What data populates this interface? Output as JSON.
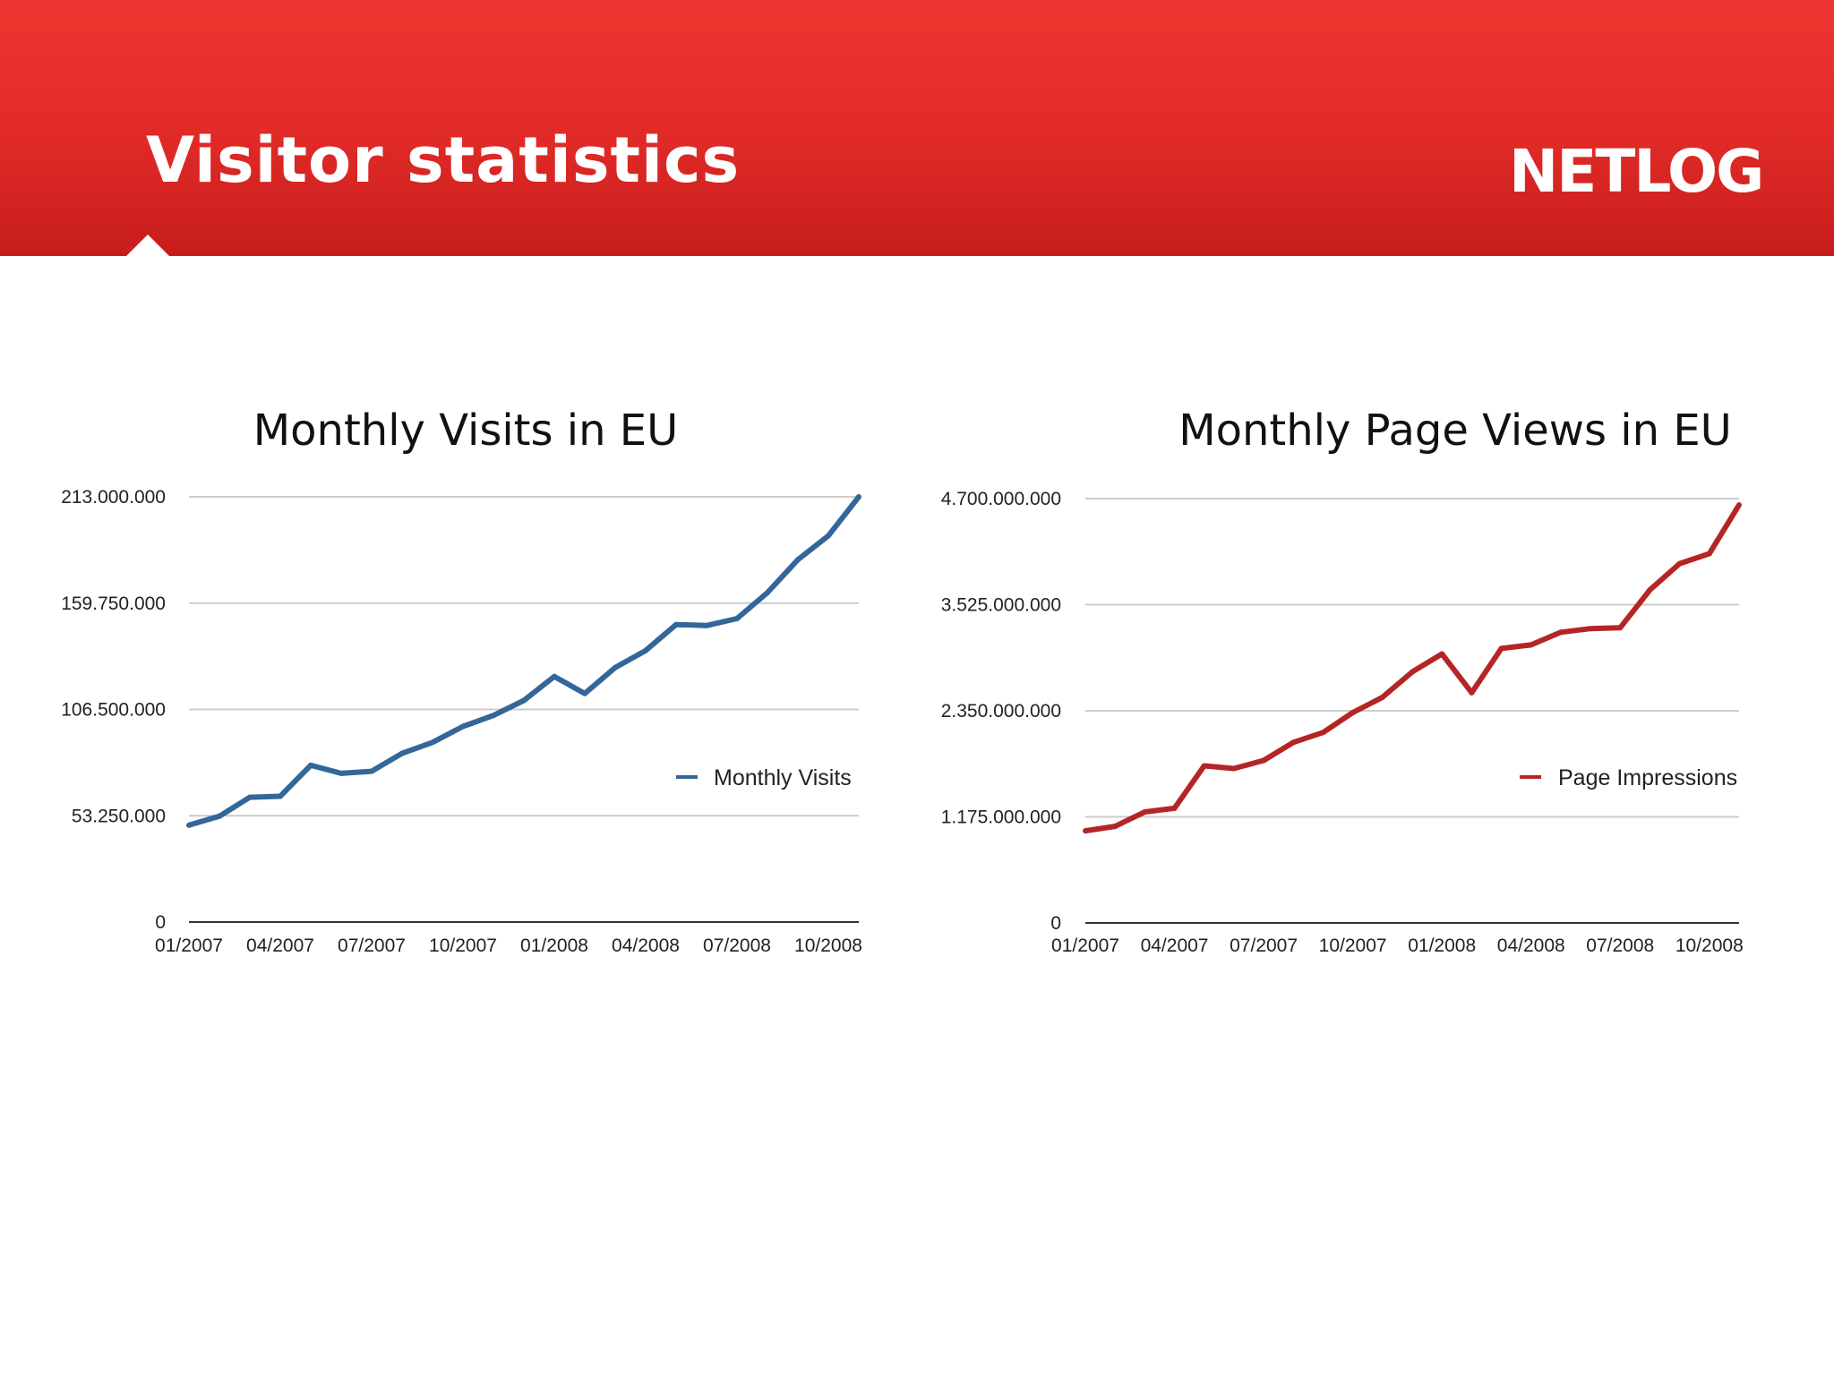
{
  "header": {
    "title": "Visitor statistics",
    "logo_text": "NETLOG",
    "bg_color": "#e02a27"
  },
  "chart_data": [
    {
      "type": "line",
      "title": "Monthly Visits in EU",
      "xlabel": "",
      "ylabel": "",
      "ylim": [
        0,
        213000000
      ],
      "y_ticks": [
        "0",
        "53.250.000",
        "106.500.000",
        "159.750.000",
        "213.000.000"
      ],
      "x_ticks": [
        "01/2007",
        "04/2007",
        "07/2007",
        "10/2007",
        "01/2008",
        "04/2008",
        "07/2008",
        "10/2008"
      ],
      "grid": true,
      "legend_position": "right",
      "color": "#336699",
      "series": [
        {
          "name": "Monthly Visits",
          "x": [
            "01/2007",
            "02/2007",
            "03/2007",
            "04/2007",
            "05/2007",
            "06/2007",
            "07/2007",
            "08/2007",
            "09/2007",
            "10/2007",
            "11/2007",
            "12/2007",
            "01/2008",
            "02/2008",
            "03/2008",
            "04/2008",
            "05/2008",
            "06/2008",
            "07/2008",
            "08/2008",
            "09/2008",
            "10/2008",
            "11/2008"
          ],
          "values": [
            48500000,
            53000000,
            62500000,
            63000000,
            78500000,
            74500000,
            75500000,
            84500000,
            90000000,
            98000000,
            103500000,
            111000000,
            123000000,
            114500000,
            127500000,
            136000000,
            149000000,
            148500000,
            152000000,
            165000000,
            181500000,
            193500000,
            213000000
          ]
        }
      ]
    },
    {
      "type": "line",
      "title": "Monthly Page Views in EU",
      "xlabel": "",
      "ylabel": "",
      "ylim": [
        0,
        4700000000
      ],
      "y_ticks": [
        "0",
        "1.175.000.000",
        "2.350.000.000",
        "3.525.000.000",
        "4.700.000.000"
      ],
      "x_ticks": [
        "01/2007",
        "04/2007",
        "07/2007",
        "10/2007",
        "01/2008",
        "04/2008",
        "07/2008",
        "10/2008"
      ],
      "grid": true,
      "legend_position": "right",
      "color": "#b52525",
      "series": [
        {
          "name": "Page Impressions",
          "x": [
            "01/2007",
            "02/2007",
            "03/2007",
            "04/2007",
            "05/2007",
            "06/2007",
            "07/2007",
            "08/2007",
            "09/2007",
            "10/2007",
            "11/2007",
            "12/2007",
            "01/2008",
            "02/2008",
            "03/2008",
            "04/2008",
            "05/2008",
            "06/2008",
            "07/2008",
            "08/2008",
            "09/2008",
            "10/2008",
            "11/2008"
          ],
          "values": [
            1020000000,
            1070000000,
            1230000000,
            1270000000,
            1740000000,
            1710000000,
            1800000000,
            2000000000,
            2110000000,
            2330000000,
            2500000000,
            2780000000,
            2980000000,
            2550000000,
            3040000000,
            3080000000,
            3220000000,
            3260000000,
            3270000000,
            3690000000,
            3980000000,
            4090000000,
            4630000000
          ]
        }
      ]
    }
  ]
}
